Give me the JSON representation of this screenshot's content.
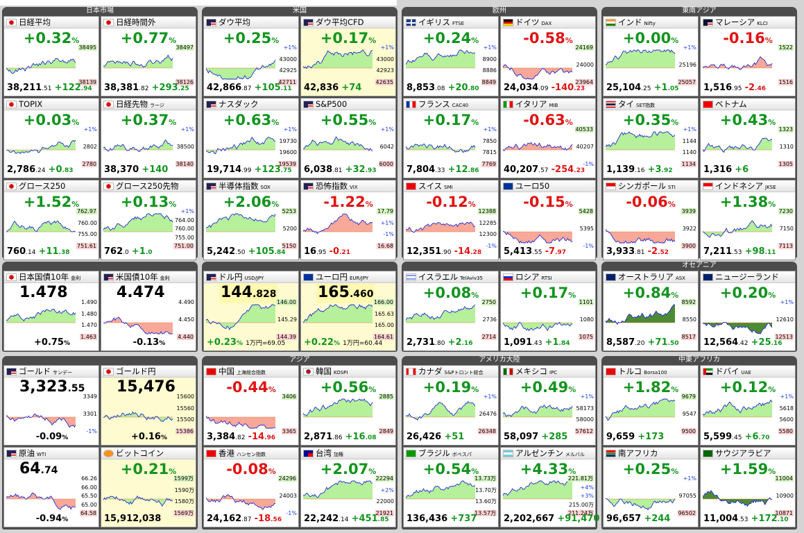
{
  "panels": [
    {
      "title": "日本市場",
      "cells": [
        {
          "name": "日経平均",
          "tag": "",
          "flag": "jp",
          "change": "+0.32",
          "dir": "up",
          "value_main": "38,211",
          "value_dec": ".51",
          "delta": "+122",
          "delta_dec": ".94",
          "ticks": [
            "38495",
            "38139"
          ],
          "yellow": false
        },
        {
          "name": "日経時間外",
          "tag": "",
          "flag": "jp",
          "change": "+0.77",
          "dir": "up",
          "value_main": "38,381",
          "value_dec": ".82",
          "delta": "+293",
          "delta_dec": ".25",
          "ticks": [
            "38497",
            "38126"
          ],
          "yellow": false
        },
        {
          "name": "TOPIX",
          "tag": "",
          "flag": "jp",
          "change": "+0.03",
          "dir": "up",
          "value_main": "2,786",
          "value_dec": ".24",
          "delta": "+0",
          "delta_dec": ".83",
          "ticks": [
            "+1%",
            "2802",
            "2780"
          ],
          "yellow": false
        },
        {
          "name": "日経先物",
          "tag": "ラージ",
          "flag": "jp",
          "change": "+0.37",
          "dir": "up",
          "value_main": "38,370",
          "value_dec": "",
          "delta": "+140",
          "delta_dec": "",
          "ticks": [
            "+1%",
            "38500",
            "38140"
          ],
          "yellow": false
        },
        {
          "name": "グロース250",
          "tag": "",
          "flag": "jp",
          "change": "+1.52",
          "dir": "up",
          "value_main": "760",
          "value_dec": ".14",
          "delta": "+11",
          "delta_dec": ".38",
          "ticks": [
            "762.97",
            "760.00",
            "755.00",
            "751.61"
          ],
          "yellow": false
        },
        {
          "name": "グロース250先物",
          "tag": "",
          "flag": "jp",
          "change": "+0.13",
          "dir": "up",
          "value_main": "762",
          "value_dec": ".0",
          "delta": "+1",
          "delta_dec": ".0",
          "ticks": [
            "+1%",
            "764.00",
            "760.00",
            "755.00",
            "751.00"
          ],
          "yellow": false
        }
      ]
    },
    {
      "title": "米国",
      "cells": [
        {
          "name": "ダウ平均",
          "tag": "",
          "flag": "us",
          "change": "+0.25",
          "dir": "up",
          "value_main": "42,866",
          "value_dec": ".87",
          "delta": "+105",
          "delta_dec": ".11",
          "ticks": [
            "+1%",
            "43000",
            "42925",
            "42711"
          ],
          "yellow": false
        },
        {
          "name": "ダウ平均CFD",
          "tag": "",
          "flag": "us",
          "change": "+0.17",
          "dir": "up",
          "value_main": "42,836",
          "value_dec": "",
          "delta": "+74",
          "delta_dec": "",
          "ticks": [
            "+1%",
            "43000",
            "42923",
            "42635"
          ],
          "yellow": true
        },
        {
          "name": "ナスダック",
          "tag": "",
          "flag": "us",
          "change": "+0.63",
          "dir": "up",
          "value_main": "19,714",
          "value_dec": ".99",
          "delta": "+123",
          "delta_dec": ".75",
          "ticks": [
            "+1%",
            "19730",
            "19600",
            "19539"
          ],
          "yellow": false
        },
        {
          "name": "S&P500",
          "tag": "",
          "flag": "us",
          "change": "+0.55",
          "dir": "up",
          "value_main": "6,038",
          "value_dec": ".81",
          "delta": "+32",
          "delta_dec": ".93",
          "ticks": [
            "+1%",
            "6042",
            "6000"
          ],
          "yellow": false
        },
        {
          "name": "半導体指数",
          "tag": "SOX",
          "flag": "us",
          "change": "+2.06",
          "dir": "up",
          "value_main": "5,242",
          "value_dec": ".50",
          "delta": "+105",
          "delta_dec": ".84",
          "ticks": [
            "5253",
            "5200",
            "5150"
          ],
          "yellow": false
        },
        {
          "name": "恐怖指数",
          "tag": "VIX",
          "flag": "us",
          "change": "-1.22",
          "dir": "dn",
          "value_main": "16",
          "value_dec": ".95",
          "delta": "-0",
          "delta_dec": ".21",
          "ticks": [
            "17.79",
            "+1%",
            "-1%",
            "16.68"
          ],
          "yellow": false
        }
      ]
    },
    {
      "title": "欧州",
      "cells": [
        {
          "name": "イギリス",
          "tag": "FTSE",
          "flag": "uk",
          "change": "+0.24",
          "dir": "up",
          "value_main": "8,853",
          "value_dec": ".08",
          "delta": "+20",
          "delta_dec": ".80",
          "ticks": [
            "+1%",
            "8900",
            "8886",
            "8849"
          ],
          "yellow": false
        },
        {
          "name": "ドイツ",
          "tag": "DAX",
          "flag": "de",
          "change": "-0.58",
          "dir": "dn",
          "value_main": "24,034",
          "value_dec": ".09",
          "delta": "-140",
          "delta_dec": ".23",
          "ticks": [
            "24169",
            "24000",
            "23964"
          ],
          "yellow": false
        },
        {
          "name": "フランス",
          "tag": "CAC40",
          "flag": "fr",
          "change": "+0.17",
          "dir": "up",
          "value_main": "7,804",
          "value_dec": ".33",
          "delta": "+12",
          "delta_dec": ".86",
          "ticks": [
            "+1%",
            "7850",
            "7815",
            "7769"
          ],
          "yellow": false
        },
        {
          "name": "イタリア",
          "tag": "MIB",
          "flag": "it",
          "change": "-0.63",
          "dir": "dn",
          "value_main": "40,207",
          "value_dec": ".57",
          "delta": "-254",
          "delta_dec": ".23",
          "ticks": [
            "40533",
            "40207",
            "-1%"
          ],
          "yellow": false
        },
        {
          "name": "スイス",
          "tag": "SMI",
          "flag": "ch",
          "change": "-0.12",
          "dir": "dn",
          "value_main": "12,351",
          "value_dec": ".90",
          "delta": "-14",
          "delta_dec": ".28",
          "ticks": [
            "12388",
            "12285",
            "12300",
            "-1%"
          ],
          "yellow": false
        },
        {
          "name": "ユーロ50",
          "tag": "",
          "flag": "eu",
          "change": "-0.15",
          "dir": "dn",
          "value_main": "5,413",
          "value_dec": ".55",
          "delta": "-7",
          "delta_dec": ".97",
          "ticks": [
            "5428",
            "5395",
            "-1%"
          ],
          "yellow": false
        }
      ]
    },
    {
      "title": "東南アジア",
      "cells": [
        {
          "name": "インド",
          "tag": "Nifty",
          "flag": "in",
          "change": "+0.00",
          "dir": "up",
          "value_main": "25,104",
          "value_dec": ".25",
          "delta": "+1",
          "delta_dec": ".05",
          "ticks": [
            "+1%",
            "25196",
            "25057"
          ],
          "yellow": false
        },
        {
          "name": "マレーシア",
          "tag": "KLCI",
          "flag": "my",
          "change": "-0.16",
          "dir": "dn",
          "value_main": "1,516",
          "value_dec": ".95",
          "delta": "-2",
          "delta_dec": ".46",
          "ticks": [
            "1522",
            "1516"
          ],
          "yellow": false
        },
        {
          "name": "タイ",
          "tag": "SET指数",
          "flag": "th",
          "change": "+0.35",
          "dir": "up",
          "value_main": "1,139",
          "value_dec": ".16",
          "delta": "+3",
          "delta_dec": ".92",
          "ticks": [
            "+1%",
            "1144",
            "1140",
            "1134"
          ],
          "yellow": false
        },
        {
          "name": "ベトナム",
          "tag": "",
          "flag": "vn",
          "change": "+0.43",
          "dir": "up",
          "value_main": "1,316",
          "value_dec": "",
          "delta": "+6",
          "delta_dec": "",
          "ticks": [
            "1323",
            "1310",
            "1305"
          ],
          "yellow": false
        },
        {
          "name": "シンガポール",
          "tag": "STI",
          "flag": "sg",
          "change": "-0.06",
          "dir": "dn",
          "value_main": "3,933",
          "value_dec": ".81",
          "delta": "-2",
          "delta_dec": ".52",
          "ticks": [
            "3939",
            "3922",
            "3900"
          ],
          "yellow": false
        },
        {
          "name": "インドネシア",
          "tag": "JKSE",
          "flag": "id",
          "change": "+1.38",
          "dir": "up",
          "value_main": "7,211",
          "value_dec": ".53",
          "delta": "+98",
          "delta_dec": ".11",
          "ticks": [
            "7230",
            "7150",
            "7113"
          ],
          "yellow": false
        }
      ]
    },
    {
      "title": "",
      "cells": [
        {
          "name": "日本国債10年",
          "tag": "金利",
          "flag": "jp",
          "bigtxt": "1.478",
          "bigdec": "",
          "change": "+0.75",
          "dir": "up",
          "ticks": [
            "1.490",
            "1.480",
            "1.470",
            "1.463"
          ],
          "yellow": false,
          "rate": true
        },
        {
          "name": "米国債10年",
          "tag": "金利",
          "flag": "us",
          "bigtxt": "4.474",
          "bigdec": "",
          "change": "-0.13",
          "dir": "dn",
          "ticks": [
            "4.490",
            "4.450",
            "4.440"
          ],
          "yellow": false,
          "rate": true
        }
      ]
    },
    {
      "title": "",
      "cells": [
        {
          "name": "ドル円",
          "tag": "USD/JPY",
          "flag": "us",
          "bigtxt": "144",
          "bigdec": ".828",
          "change": "+0.23",
          "dir": "up",
          "extra": "1万円=69.05",
          "ticks": [
            "146.00",
            "145.29",
            "144.39"
          ],
          "yellow": true,
          "fx": true
        },
        {
          "name": "ユーロ円",
          "tag": "EUR/JPY",
          "flag": "eu",
          "bigtxt": "165",
          "bigdec": ".460",
          "change": "+0.22",
          "dir": "up",
          "extra": "1万円=60.44",
          "ticks": [
            "166.00",
            "165.63",
            "165.00",
            "164.61"
          ],
          "yellow": true,
          "fx": true
        }
      ]
    },
    {
      "title": "",
      "cells": [
        {
          "name": "イスラエル",
          "tag": "TelAviv35",
          "flag": "il",
          "change": "+0.08",
          "dir": "up",
          "value_main": "2,731",
          "value_dec": ".80",
          "delta": "+2",
          "delta_dec": ".16",
          "ticks": [
            "2750",
            "2736",
            "2714"
          ],
          "yellow": false
        },
        {
          "name": "ロシア",
          "tag": "RTSI",
          "flag": "ru",
          "change": "+0.17",
          "dir": "up",
          "value_main": "1,091",
          "value_dec": ".43",
          "delta": "+1",
          "delta_dec": ".84",
          "ticks": [
            "1101",
            "1080",
            "1075"
          ],
          "yellow": false
        }
      ]
    },
    {
      "title": "オセアニア",
      "cells": [
        {
          "name": "オーストラリア",
          "tag": "ASX",
          "flag": "au",
          "change": "+0.84",
          "dir": "up",
          "value_main": "8,587",
          "value_dec": ".20",
          "delta": "+71",
          "delta_dec": ".50",
          "ticks": [
            "8592",
            "8550",
            "8517"
          ],
          "yellow": false,
          "dark": true
        },
        {
          "name": "ニュージーランド",
          "tag": "",
          "flag": "nz",
          "change": "+0.20",
          "dir": "up",
          "value_main": "12,564",
          "value_dec": ".42",
          "delta": "+25",
          "delta_dec": ".16",
          "ticks": [
            "+1%",
            "12610",
            "12513"
          ],
          "yellow": false,
          "dark": true
        }
      ]
    },
    {
      "title": "",
      "cells": [
        {
          "name": "ゴールド",
          "tag": "サンデー",
          "flag": "us",
          "bigtxt": "3,323",
          "bigdec": ".55",
          "change": "-0.09",
          "dir": "dn",
          "ticks": [
            "3349",
            "3301",
            "-1%"
          ],
          "yellow": false,
          "rate": true
        },
        {
          "name": "ゴールド円",
          "tag": "",
          "flag": "jp",
          "bigtxt": "15,476",
          "bigdec": "",
          "change": "+0.16",
          "dir": "up",
          "ticks": [
            "15600",
            "15560",
            "15500",
            "15386"
          ],
          "yellow": true,
          "rate": true
        },
        {
          "name": "原油",
          "tag": "WTI",
          "flag": "us",
          "bigtxt": "64",
          "bigdec": ".74",
          "change": "-0.94",
          "dir": "dn",
          "ticks": [
            "66.26",
            "66.00",
            "65.50",
            "65.00",
            "64.58"
          ],
          "yellow": false,
          "rate": true
        },
        {
          "name": "ビットコイン",
          "tag": "",
          "flag": "btc",
          "change": "+0.21",
          "dir": "up",
          "value_main": "15,912,038",
          "value_dec": "",
          "delta": "",
          "delta_dec": "",
          "ticks": [
            "1599万",
            "1590万",
            "1580万",
            "1569万"
          ],
          "yellow": true
        }
      ]
    },
    {
      "title": "アジア",
      "cells": [
        {
          "name": "中国",
          "tag": "上海総合指数",
          "flag": "cn",
          "change": "-0.44",
          "dir": "dn",
          "value_main": "3,384",
          "value_dec": ".82",
          "delta": "-14",
          "delta_dec": ".96",
          "ticks": [
            "3406",
            "3365"
          ],
          "yellow": false
        },
        {
          "name": "韓国",
          "tag": "KOSPI",
          "flag": "kr",
          "change": "+0.56",
          "dir": "up",
          "value_main": "2,871",
          "value_dec": ".86",
          "delta": "+16",
          "delta_dec": ".08",
          "ticks": [
            "2885",
            "2849"
          ],
          "yellow": false
        },
        {
          "name": "香港",
          "tag": "ハンセン指数",
          "flag": "hk",
          "change": "-0.08",
          "dir": "dn",
          "value_main": "24,162",
          "value_dec": ".87",
          "delta": "-18",
          "delta_dec": ".56",
          "ticks": [
            "24296",
            "24003",
            "-1%"
          ],
          "yellow": false
        },
        {
          "name": "台湾",
          "tag": "加権",
          "flag": "tw",
          "change": "+2.07",
          "dir": "up",
          "value_main": "22,242",
          "value_dec": ".14",
          "delta": "+451",
          "delta_dec": ".85",
          "ticks": [
            "22294",
            "+2%",
            "22000",
            "21921"
          ],
          "yellow": false
        }
      ]
    },
    {
      "title": "アメリカ大陸",
      "cells": [
        {
          "name": "カナダ",
          "tag": "S&Pトロント総合",
          "flag": "ca",
          "change": "+0.19",
          "dir": "up",
          "value_main": "26,426",
          "value_dec": "",
          "delta": "+51",
          "delta_dec": "",
          "ticks": [
            "+1%",
            "26476",
            "26348"
          ],
          "yellow": false
        },
        {
          "name": "メキシコ",
          "tag": "IPC",
          "flag": "mx",
          "change": "+0.49",
          "dir": "up",
          "value_main": "58,097",
          "value_dec": "",
          "delta": "+285",
          "delta_dec": "",
          "ticks": [
            "+1%",
            "58173",
            "58000",
            "57612"
          ],
          "yellow": false
        },
        {
          "name": "ブラジル",
          "tag": "ボベスパ",
          "flag": "br",
          "change": "+0.54",
          "dir": "up",
          "value_main": "136,436",
          "value_dec": "",
          "delta": "+737",
          "delta_dec": "",
          "ticks": [
            "13.73万",
            "13.70万",
            "13.60万",
            "13.57万"
          ],
          "yellow": false
        },
        {
          "name": "アルゼンチン",
          "tag": "メルバル",
          "flag": "ar",
          "change": "+4.33",
          "dir": "up",
          "value_main": "2,202,667",
          "value_dec": "",
          "delta": "+91,470",
          "delta_dec": "",
          "ticks": [
            "221.81万",
            "+4%",
            "+3%",
            "215.00万",
            "211.24万"
          ],
          "yellow": false
        }
      ]
    },
    {
      "title": "中東アフリカ",
      "cells": [
        {
          "name": "トルコ",
          "tag": "Borsa100",
          "flag": "tr",
          "change": "+1.82",
          "dir": "up",
          "value_main": "9,659",
          "value_dec": "",
          "delta": "+173",
          "delta_dec": "",
          "ticks": [
            "9679",
            "9547",
            "9500"
          ],
          "yellow": false
        },
        {
          "name": "ドバイ",
          "tag": "UAE",
          "flag": "ae",
          "change": "+0.12",
          "dir": "up",
          "value_main": "5,599",
          "value_dec": ".45",
          "delta": "+6",
          "delta_dec": ".70",
          "ticks": [
            "+1%",
            "5618",
            "5600",
            "5580"
          ],
          "yellow": false
        },
        {
          "name": "南アフリカ",
          "tag": "",
          "flag": "za",
          "change": "+0.25",
          "dir": "up",
          "value_main": "96,657",
          "value_dec": "",
          "delta": "+244",
          "delta_dec": "",
          "ticks": [
            "+1%",
            "97055",
            "96502"
          ],
          "yellow": false
        },
        {
          "name": "サウジアラビア",
          "tag": "",
          "flag": "sa",
          "change": "+1.59",
          "dir": "up",
          "value_main": "11,004",
          "value_dec": ".53",
          "delta": "+172",
          "delta_dec": ".10",
          "ticks": [
            "11004",
            "10900",
            "10871"
          ],
          "yellow": false,
          "dark": true
        }
      ]
    }
  ],
  "colors": {
    "up": "#13941f",
    "down": "#e01414",
    "area_up": "#b6f09a",
    "area_down": "#f8a898",
    "line": "#1f2bd6",
    "header_bg": "#4c4c4c"
  }
}
